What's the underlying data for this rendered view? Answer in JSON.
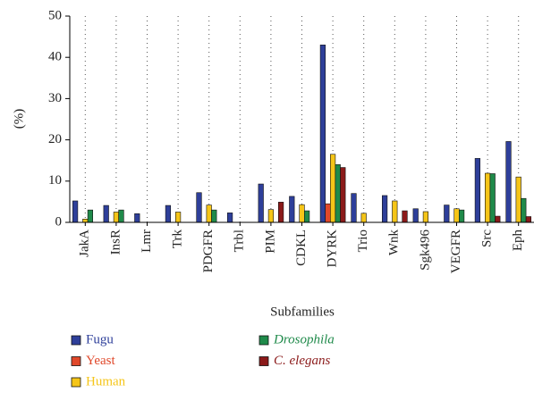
{
  "chart_data": {
    "type": "bar",
    "ylabel": "(%)",
    "xlabel": "Subfamilies",
    "categories": [
      "JakA",
      "InsR",
      "Lmr",
      "Trk",
      "PDGFR",
      "Trbl",
      "PIM",
      "CDKL",
      "DYRK",
      "Trio",
      "Wnk",
      "Sgk496",
      "VEGFR",
      "Src",
      "Eph"
    ],
    "series": [
      {
        "name": "Fugu",
        "color": "#2e3f9a",
        "values": [
          5.2,
          4.1,
          2.1,
          4.1,
          7.2,
          2.3,
          9.3,
          6.3,
          43,
          7,
          6.5,
          3.3,
          4.2,
          15.5,
          19.6
        ]
      },
      {
        "name": "Yeast",
        "color": "#e0482a",
        "values": [
          0,
          0,
          0,
          0,
          0,
          0,
          0,
          0,
          4.5,
          0,
          0,
          0,
          0,
          0,
          0
        ]
      },
      {
        "name": "Human",
        "color": "#f5c518",
        "values": [
          0.8,
          2.5,
          0,
          2.5,
          4.2,
          0,
          3.1,
          4.3,
          16.5,
          2.2,
          5.2,
          2.6,
          3.3,
          11.9,
          11
        ]
      },
      {
        "name": "Drosophila",
        "color": "#1f8a4a",
        "values": [
          3,
          3,
          0,
          0,
          3,
          0,
          0,
          2.8,
          14,
          0,
          0,
          0,
          3,
          11.8,
          5.8
        ]
      },
      {
        "name": "C. elegans",
        "color": "#8b1a1a",
        "values": [
          0,
          0,
          0,
          0,
          0,
          0,
          4.9,
          0,
          13.3,
          0,
          2.8,
          0,
          0,
          1.5,
          1.4
        ]
      }
    ],
    "ylim": [
      0,
      50
    ],
    "yticks": [
      0,
      10,
      20,
      30,
      40,
      50
    ],
    "grid": true,
    "legend": "bottom"
  }
}
